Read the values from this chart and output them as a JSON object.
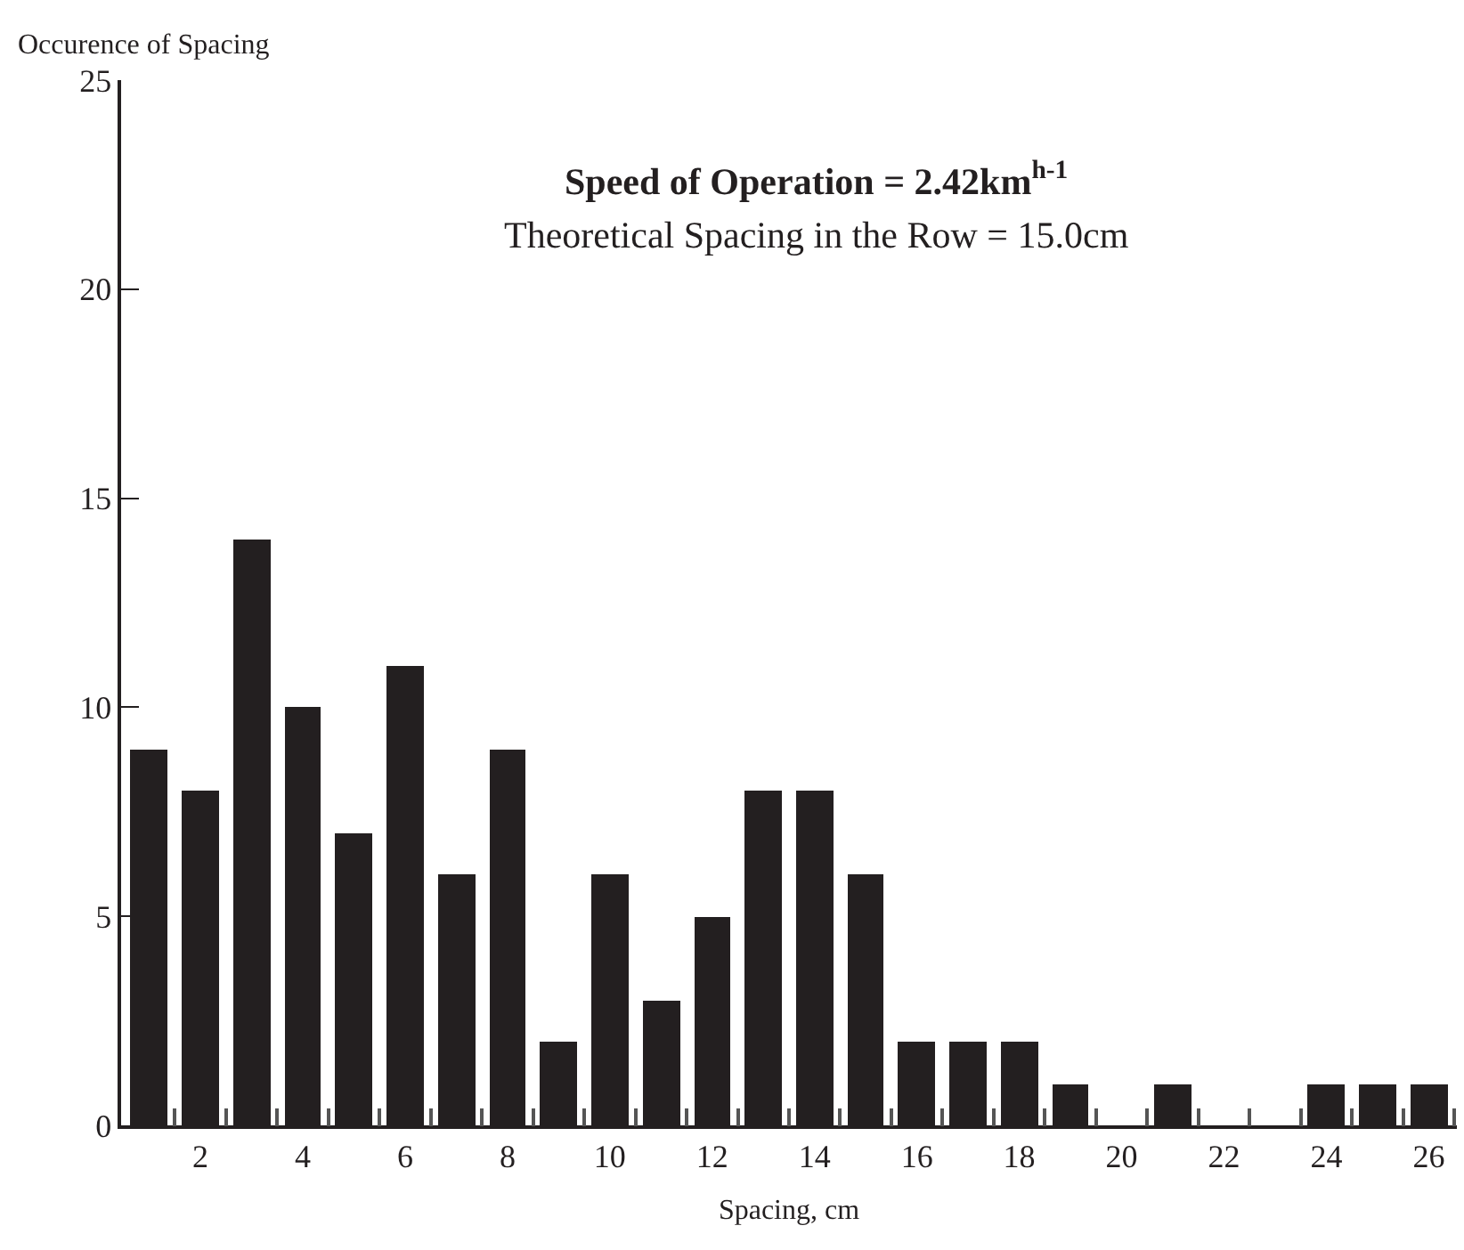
{
  "chart_data": {
    "type": "bar",
    "title": "Speed of Operation = 2.42km$^{h-1}$",
    "subtitle": "Theoretical Spacing in the Row = 15.0cm",
    "xlabel": "Spacing, cm",
    "ylabel": "Occurence of Spacing",
    "x": [
      1,
      2,
      3,
      4,
      5,
      6,
      7,
      8,
      9,
      10,
      11,
      12,
      13,
      14,
      15,
      16,
      17,
      18,
      19,
      20,
      21,
      22,
      23,
      24,
      25,
      26
    ],
    "values": [
      9,
      8,
      14,
      10,
      7,
      11,
      6,
      9,
      2,
      6,
      3,
      5,
      8,
      8,
      6,
      2,
      2,
      2,
      1,
      0,
      1,
      0,
      0,
      1,
      1,
      1
    ],
    "color": "#231f20",
    "xlim": [
      0.45,
      26.55
    ],
    "xticks": [
      2,
      4,
      6,
      8,
      10,
      12,
      14,
      16,
      18,
      20,
      22,
      24,
      26,
      {
        "value": 1.5,
        "label": null
      },
      {
        "value": 2.5,
        "label": null
      },
      {
        "value": 3.5,
        "label": null
      },
      {
        "value": 4.5,
        "label": null
      },
      {
        "value": 5.5,
        "label": null
      },
      {
        "value": 6.5,
        "label": null
      },
      {
        "value": 7.5,
        "label": null
      },
      {
        "value": 8.5,
        "label": null
      },
      {
        "value": 9.5,
        "label": null
      },
      {
        "value": 10.5,
        "label": null
      },
      {
        "value": 11.5,
        "label": null
      },
      {
        "value": 12.5,
        "label": null
      },
      {
        "value": 13.5,
        "label": null
      },
      {
        "value": 14.5,
        "label": null
      },
      {
        "value": 15.5,
        "label": null
      },
      {
        "value": 16.5,
        "label": null
      },
      {
        "value": 17.5,
        "label": null
      },
      {
        "value": 18.5,
        "label": null
      },
      {
        "value": 19.5,
        "label": null
      },
      {
        "value": 20.5,
        "label": null
      },
      {
        "value": 21.5,
        "label": null
      },
      {
        "value": 22.5,
        "label": null
      },
      {
        "value": 23.5,
        "label": null
      },
      {
        "value": 24.5,
        "label": null
      },
      {
        "value": 25.5,
        "label": null
      },
      {
        "value": 26.5,
        "label": null
      }
    ],
    "ylim": [
      0,
      25
    ],
    "yticks": [
      0,
      5,
      10,
      15,
      20,
      25
    ]
  }
}
